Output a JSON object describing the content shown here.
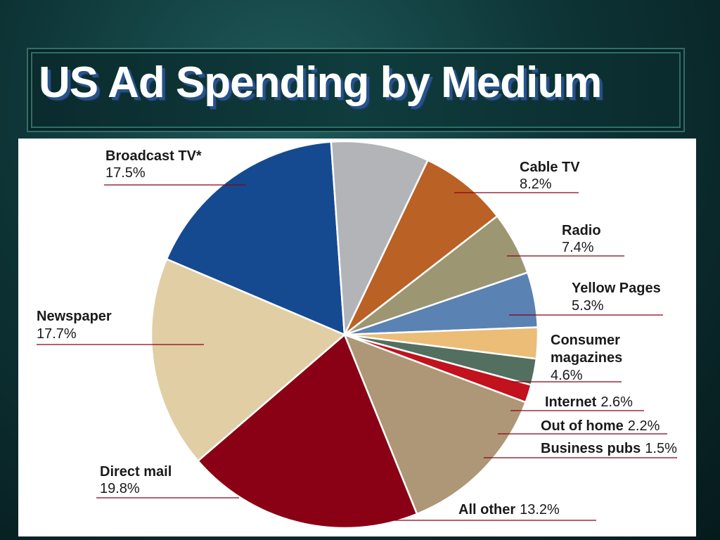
{
  "title": "US Ad Spending by Medium",
  "chart_data": {
    "type": "pie",
    "title": "US Ad Spending by Medium",
    "unit": "%",
    "slices": [
      {
        "name": "Broadcast TV*",
        "value": 17.5,
        "value_label": "17.5%",
        "color": "#154a91"
      },
      {
        "name": "Cable TV",
        "value": 8.2,
        "value_label": "8.2%",
        "color": "#b3b4b8"
      },
      {
        "name": "Radio",
        "value": 7.4,
        "value_label": "7.4%",
        "color": "#ba6125"
      },
      {
        "name": "Yellow Pages",
        "value": 5.3,
        "value_label": "5.3%",
        "color": "#9c9672"
      },
      {
        "name": "Consumer magazines",
        "value": 4.6,
        "value_label": "4.6%",
        "color": "#5a82b3"
      },
      {
        "name": "Internet",
        "value": 2.6,
        "value_label": "2.6%",
        "color": "#ebbd76"
      },
      {
        "name": "Out of home",
        "value": 2.2,
        "value_label": "2.2%",
        "color": "#536f5f"
      },
      {
        "name": "Business pubs",
        "value": 1.5,
        "value_label": "1.5%",
        "color": "#c1121e"
      },
      {
        "name": "All other",
        "value": 13.2,
        "value_label": "13.2%",
        "color": "#ae9776"
      },
      {
        "name": "Direct mail",
        "value": 19.8,
        "value_label": "19.8%",
        "color": "#8a0015"
      },
      {
        "name": "Newspaper",
        "value": 17.7,
        "value_label": "17.7%",
        "color": "#e1cea5"
      }
    ],
    "leader_line_color": "#8a0015"
  }
}
